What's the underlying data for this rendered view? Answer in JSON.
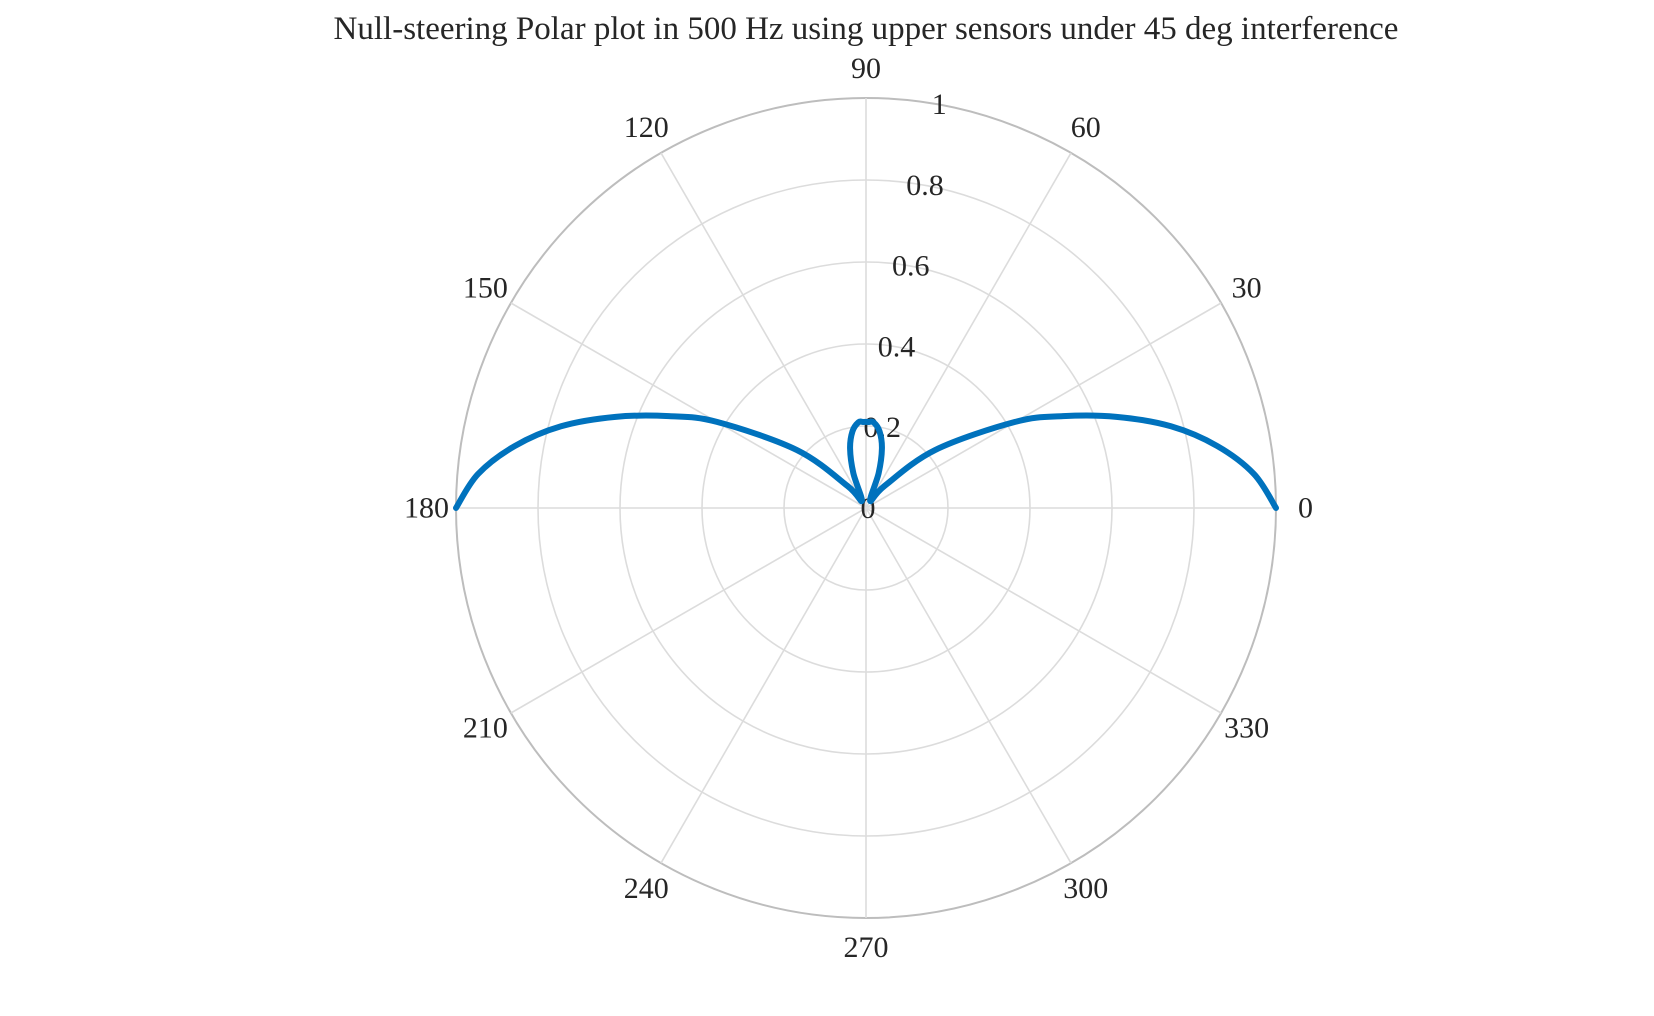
{
  "chart_data": {
    "type": "polar",
    "title": "Null-steering Polar plot in 500 Hz using upper sensors under 45 deg interference",
    "theta_unit": "degrees",
    "theta_ticks": [
      "0",
      "30",
      "60",
      "90",
      "120",
      "150",
      "180",
      "210",
      "240",
      "270",
      "300",
      "330"
    ],
    "theta_tick_values": [
      0,
      30,
      60,
      90,
      120,
      150,
      180,
      210,
      240,
      270,
      300,
      330
    ],
    "r_ticks": [
      "0",
      "0.2",
      "0.4",
      "0.6",
      "0.8",
      "1"
    ],
    "r_tick_values": [
      0,
      0.2,
      0.4,
      0.6,
      0.8,
      1
    ],
    "rlim": [
      0,
      1
    ],
    "grid": true,
    "series": [
      {
        "color": "#0072BD",
        "theta_deg": [
          0,
          5,
          10,
          15,
          20,
          25,
          30,
          40,
          50,
          60,
          70,
          75,
          80,
          85,
          88,
          90,
          92,
          95,
          100,
          105,
          110,
          120,
          130,
          140,
          150,
          155,
          160,
          165,
          170,
          175,
          180
        ],
        "r": [
          1.0,
          0.95,
          0.87,
          0.77,
          0.65,
          0.53,
          0.42,
          0.22,
          0.07,
          0.02,
          0.09,
          0.15,
          0.19,
          0.21,
          0.21,
          0.21,
          0.21,
          0.21,
          0.19,
          0.15,
          0.09,
          0.02,
          0.07,
          0.22,
          0.42,
          0.53,
          0.65,
          0.77,
          0.87,
          0.95,
          1.0
        ]
      }
    ]
  }
}
